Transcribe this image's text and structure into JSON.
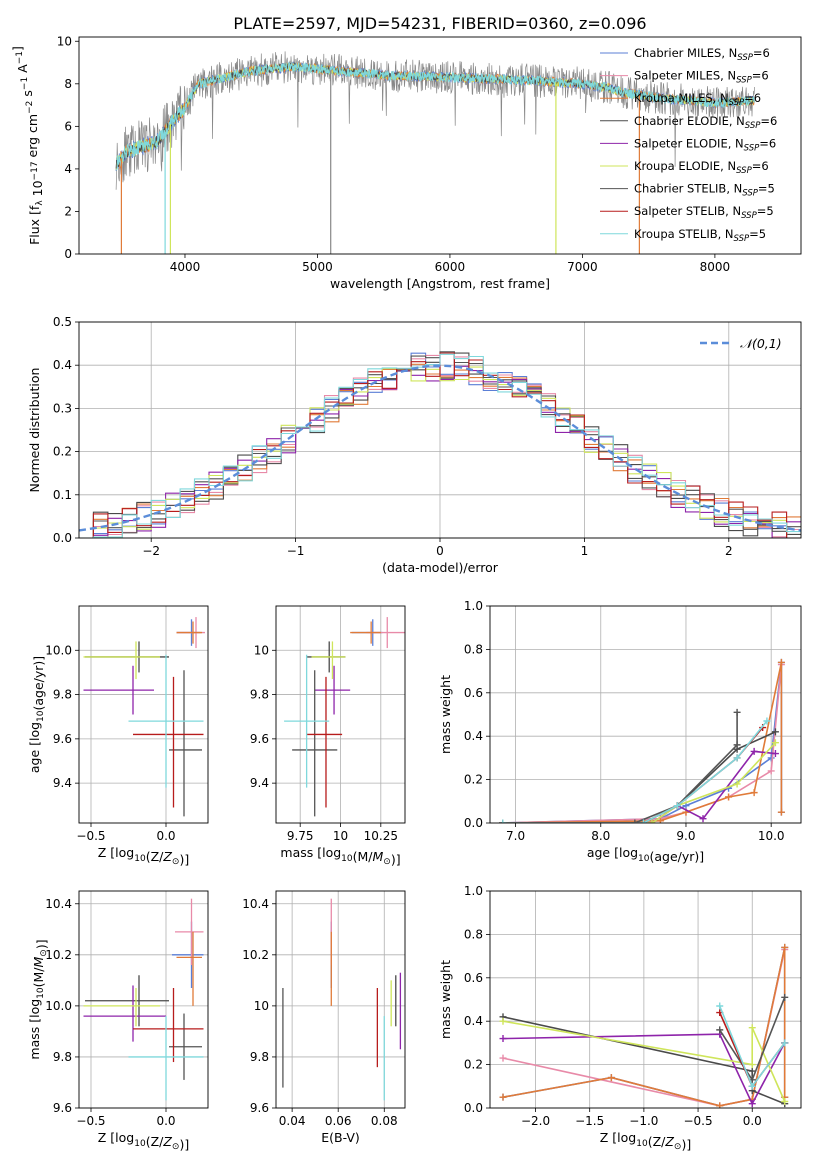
{
  "title": "PLATE=2597, MJD=54231, FIBERID=0360, z=0.096",
  "colors": {
    "chabrier_miles": "#5b7fd6",
    "salpeter_miles": "#e88aa8",
    "kroupa_miles": "#e07b39",
    "chabrier_elodie": "#4a4a4a",
    "salpeter_elodie": "#8e24aa",
    "kroupa_elodie": "#cfe55b",
    "chabrier_stelib": "#555555",
    "salpeter_stelib": "#b71c1c",
    "kroupa_stelib": "#7fd8dc",
    "gaussian": "#5b8dd9"
  },
  "legend_spectrum": [
    {
      "label": "Chabrier MILES, N",
      "sub": "SSP",
      "tail": "=6"
    },
    {
      "label": "Salpeter MILES, N",
      "sub": "SSP",
      "tail": "=6"
    },
    {
      "label": "Kroupa MILES, N",
      "sub": "SSP",
      "tail": "=6"
    },
    {
      "label": "Chabrier ELODIE, N",
      "sub": "SSP",
      "tail": "=6"
    },
    {
      "label": "Salpeter ELODIE, N",
      "sub": "SSP",
      "tail": "=6"
    },
    {
      "label": "Kroupa ELODIE, N",
      "sub": "SSP",
      "tail": "=6"
    },
    {
      "label": "Chabrier STELIB, N",
      "sub": "SSP",
      "tail": "=5"
    },
    {
      "label": "Salpeter STELIB, N",
      "sub": "SSP",
      "tail": "=5"
    },
    {
      "label": "Kroupa STELIB, N",
      "sub": "SSP",
      "tail": "=5"
    }
  ],
  "chart_data": [
    {
      "type": "line",
      "id": "spectrum",
      "xlabel": "wavelength [Angstrom, rest frame]",
      "ylabel": "Flux [f_λ 10^-17 erg cm^-2 s^-1 A^-1]",
      "xlim": [
        3200,
        8650
      ],
      "ylim": [
        0,
        10.2
      ],
      "xticks": [
        4000,
        5000,
        6000,
        7000,
        8000
      ],
      "yticks": [
        0,
        2,
        4,
        6,
        8,
        10
      ],
      "continuum": {
        "x": [
          3500,
          3550,
          3700,
          3800,
          3900,
          4000,
          4100,
          4300,
          4500,
          4800,
          5000,
          5500,
          6000,
          6500,
          7000,
          7200,
          7300,
          7500,
          8000,
          8300
        ],
        "y": [
          4.3,
          4.8,
          5.1,
          5.3,
          6.2,
          6.9,
          8.0,
          8.3,
          8.6,
          8.8,
          8.7,
          8.4,
          8.3,
          8.2,
          8.0,
          7.8,
          7.6,
          7.4,
          7.1,
          7.2
        ]
      }
    },
    {
      "type": "bar",
      "id": "residual-histogram",
      "xlabel": "(data-model)/error",
      "ylabel": "Normed distribution",
      "xlim": [
        -2.5,
        2.5
      ],
      "ylim": [
        0,
        0.5
      ],
      "xticks": [
        -2,
        -1,
        0,
        1,
        2
      ],
      "yticks": [
        0.0,
        0.1,
        0.2,
        0.3,
        0.4,
        0.5
      ],
      "legend": "𝒩(0,1)",
      "bin_width": 0.1
    },
    {
      "type": "scatter",
      "id": "age-vs-z",
      "xlabel": "Z [log10(Z/Z⊙)]",
      "ylabel": "age  [log10(age/yr)]",
      "xlim": [
        -0.58,
        0.28
      ],
      "ylim": [
        9.22,
        10.2
      ],
      "xticks": [
        -0.5,
        0.0
      ],
      "yticks": [
        9.4,
        9.6,
        9.8,
        10.0
      ],
      "points": [
        {
          "model": "chabrier_miles",
          "x": 0.17,
          "y": 10.08,
          "xerr": [
            0.1,
            0.06
          ],
          "yerr": [
            0.06,
            0.06
          ]
        },
        {
          "model": "salpeter_miles",
          "x": 0.2,
          "y": 10.08,
          "xerr": [
            0.13,
            0.06
          ],
          "yerr": [
            0.07,
            0.07
          ]
        },
        {
          "model": "kroupa_miles",
          "x": 0.18,
          "y": 10.08,
          "xerr": [
            0.11,
            0.06
          ],
          "yerr": [
            0.05,
            0.05
          ]
        },
        {
          "model": "chabrier_elodie",
          "x": -0.18,
          "y": 9.97,
          "xerr": [
            0.36,
            0.2
          ],
          "yerr": [
            0.07,
            0.07
          ]
        },
        {
          "model": "salpeter_elodie",
          "x": -0.22,
          "y": 9.82,
          "xerr": [
            0.33,
            0.14
          ],
          "yerr": [
            0.11,
            0.11
          ]
        },
        {
          "model": "kroupa_elodie",
          "x": -0.2,
          "y": 9.97,
          "xerr": [
            0.35,
            0.16
          ],
          "yerr": [
            0.1,
            0.07
          ]
        },
        {
          "model": "chabrier_stelib",
          "x": 0.12,
          "y": 9.55,
          "xerr": [
            0.1,
            0.12
          ],
          "yerr": [
            0.3,
            0.36
          ]
        },
        {
          "model": "salpeter_stelib",
          "x": 0.05,
          "y": 9.62,
          "xerr": [
            0.27,
            0.2
          ],
          "yerr": [
            0.33,
            0.26
          ]
        },
        {
          "model": "kroupa_stelib",
          "x": 0.0,
          "y": 9.68,
          "xerr": [
            0.25,
            0.25
          ],
          "yerr": [
            0.3,
            0.3
          ]
        }
      ]
    },
    {
      "type": "scatter",
      "id": "age-vs-mass",
      "xlabel": "mass [log10(M/M⊙)]",
      "ylabel": "",
      "xlim": [
        9.6,
        10.4
      ],
      "ylim": [
        9.22,
        10.2
      ],
      "xticks": [
        9.75,
        10.0,
        10.25
      ],
      "yticks": [
        9.4,
        9.6,
        9.8,
        10.0
      ],
      "points": [
        {
          "model": "chabrier_miles",
          "x": 10.2,
          "y": 10.08,
          "xerr": [
            0.13,
            0.06
          ],
          "yerr": [
            0.06,
            0.06
          ]
        },
        {
          "model": "salpeter_miles",
          "x": 10.29,
          "y": 10.08,
          "xerr": [
            0.13,
            0.11
          ],
          "yerr": [
            0.07,
            0.07
          ]
        },
        {
          "model": "kroupa_miles",
          "x": 10.19,
          "y": 10.08,
          "xerr": [
            0.13,
            0.06
          ],
          "yerr": [
            0.05,
            0.05
          ]
        },
        {
          "model": "chabrier_elodie",
          "x": 9.93,
          "y": 9.97,
          "xerr": [
            0.14,
            0.1
          ],
          "yerr": [
            0.07,
            0.07
          ]
        },
        {
          "model": "salpeter_elodie",
          "x": 9.96,
          "y": 9.82,
          "xerr": [
            0.12,
            0.1
          ],
          "yerr": [
            0.11,
            0.11
          ]
        },
        {
          "model": "kroupa_elodie",
          "x": 9.95,
          "y": 9.97,
          "xerr": [
            0.13,
            0.08
          ],
          "yerr": [
            0.1,
            0.07
          ]
        },
        {
          "model": "chabrier_stelib",
          "x": 9.84,
          "y": 9.55,
          "xerr": [
            0.14,
            0.14
          ],
          "yerr": [
            0.3,
            0.36
          ]
        },
        {
          "model": "salpeter_stelib",
          "x": 9.91,
          "y": 9.62,
          "xerr": [
            0.12,
            0.1
          ],
          "yerr": [
            0.33,
            0.26
          ]
        },
        {
          "model": "kroupa_stelib",
          "x": 9.79,
          "y": 9.68,
          "xerr": [
            0.14,
            0.14
          ],
          "yerr": [
            0.3,
            0.3
          ]
        }
      ]
    },
    {
      "type": "line",
      "id": "mass-weight-vs-age",
      "xlabel": "age  [log10(age/yr)]",
      "ylabel": "mass weight",
      "xlim": [
        6.7,
        10.35
      ],
      "ylim": [
        0,
        1.0
      ],
      "xticks": [
        7,
        8,
        9,
        10
      ],
      "yticks": [
        0.0,
        0.2,
        0.4,
        0.6,
        0.8,
        1.0
      ],
      "series": [
        {
          "model": "chabrier_miles",
          "x": [
            6.85,
            8.7,
            9.0,
            9.5,
            10.0,
            10.12,
            10.12
          ],
          "y": [
            0.0,
            0.02,
            0.08,
            0.16,
            0.3,
            0.74,
            0.05
          ]
        },
        {
          "model": "salpeter_miles",
          "x": [
            6.85,
            8.7,
            9.0,
            9.5,
            10.0,
            10.12
          ],
          "y": [
            0.0,
            0.02,
            0.05,
            0.12,
            0.24,
            0.73
          ]
        },
        {
          "model": "kroupa_miles",
          "x": [
            6.85,
            8.7,
            9.0,
            9.5,
            9.8,
            10.12,
            10.12
          ],
          "y": [
            0.0,
            0.01,
            0.05,
            0.12,
            0.14,
            0.74,
            0.05
          ]
        },
        {
          "model": "chabrier_elodie",
          "x": [
            6.85,
            8.5,
            8.9,
            9.6,
            10.05
          ],
          "y": [
            0.0,
            0.0,
            0.08,
            0.34,
            0.42
          ]
        },
        {
          "model": "salpeter_elodie",
          "x": [
            6.85,
            8.6,
            8.9,
            9.2,
            9.8,
            10.05
          ],
          "y": [
            0.0,
            0.0,
            0.08,
            0.02,
            0.33,
            0.32
          ]
        },
        {
          "model": "kroupa_elodie",
          "x": [
            6.85,
            8.6,
            8.9,
            9.6,
            10.05
          ],
          "y": [
            0.0,
            0.0,
            0.08,
            0.18,
            0.37
          ]
        },
        {
          "model": "chabrier_stelib",
          "x": [
            6.85,
            8.4,
            8.9,
            9.6,
            9.6
          ],
          "y": [
            0.0,
            0.0,
            0.08,
            0.36,
            0.51
          ]
        },
        {
          "model": "salpeter_stelib",
          "x": [
            6.85,
            8.5,
            8.9,
            9.6,
            9.9
          ],
          "y": [
            0.0,
            0.0,
            0.08,
            0.3,
            0.44
          ]
        },
        {
          "model": "kroupa_stelib",
          "x": [
            6.85,
            8.5,
            8.9,
            9.6,
            9.95
          ],
          "y": [
            0.0,
            0.0,
            0.08,
            0.3,
            0.47
          ]
        }
      ]
    },
    {
      "type": "scatter",
      "id": "mass-vs-z",
      "xlabel": "Z [log10(Z/Z⊙)]",
      "ylabel": "mass [log10(M/M⊙)]",
      "xlim": [
        -0.58,
        0.28
      ],
      "ylim": [
        9.6,
        10.45
      ],
      "xticks": [
        -0.5,
        0.0
      ],
      "yticks": [
        9.6,
        9.8,
        10.0,
        10.2,
        10.4
      ],
      "points": [
        {
          "model": "chabrier_miles",
          "x": 0.17,
          "y": 10.2,
          "xerr": [
            0.13,
            0.08
          ],
          "yerr": [
            0.13,
            0.13
          ]
        },
        {
          "model": "salpeter_miles",
          "x": 0.17,
          "y": 10.29,
          "xerr": [
            0.11,
            0.08
          ],
          "yerr": [
            0.13,
            0.13
          ]
        },
        {
          "model": "kroupa_miles",
          "x": 0.18,
          "y": 10.19,
          "xerr": [
            0.11,
            0.06
          ],
          "yerr": [
            0.19,
            0.1
          ]
        },
        {
          "model": "chabrier_elodie",
          "x": -0.18,
          "y": 10.02,
          "xerr": [
            0.36,
            0.2
          ],
          "yerr": [
            0.1,
            0.1
          ]
        },
        {
          "model": "salpeter_elodie",
          "x": -0.22,
          "y": 9.96,
          "xerr": [
            0.33,
            0.22
          ],
          "yerr": [
            0.1,
            0.12
          ]
        },
        {
          "model": "kroupa_elodie",
          "x": -0.2,
          "y": 10.0,
          "xerr": [
            0.35,
            0.16
          ],
          "yerr": [
            0.08,
            0.07
          ]
        },
        {
          "model": "chabrier_stelib",
          "x": 0.12,
          "y": 9.84,
          "xerr": [
            0.1,
            0.12
          ],
          "yerr": [
            0.13,
            0.13
          ]
        },
        {
          "model": "salpeter_stelib",
          "x": 0.05,
          "y": 9.91,
          "xerr": [
            0.27,
            0.2
          ],
          "yerr": [
            0.13,
            0.16
          ]
        },
        {
          "model": "kroupa_stelib",
          "x": 0.0,
          "y": 9.8,
          "xerr": [
            0.25,
            0.25
          ],
          "yerr": [
            0.17,
            0.16
          ]
        }
      ]
    },
    {
      "type": "scatter",
      "id": "mass-vs-ebv",
      "xlabel": "E(B-V)",
      "ylabel": "",
      "xlim": [
        0.033,
        0.089
      ],
      "ylim": [
        9.6,
        10.45
      ],
      "xticks": [
        0.04,
        0.06,
        0.08
      ],
      "yticks": [
        9.6,
        9.8,
        10.0,
        10.2,
        10.4
      ],
      "points": [
        {
          "model": "chabrier_miles",
          "x": 0.057,
          "y": 10.2,
          "yerr": [
            0.13,
            0.13
          ]
        },
        {
          "model": "salpeter_miles",
          "x": 0.057,
          "y": 10.29,
          "yerr": [
            0.13,
            0.13
          ]
        },
        {
          "model": "kroupa_miles",
          "x": 0.057,
          "y": 10.19,
          "yerr": [
            0.19,
            0.1
          ]
        },
        {
          "model": "chabrier_elodie",
          "x": 0.085,
          "y": 10.02,
          "yerr": [
            0.1,
            0.1
          ]
        },
        {
          "model": "salpeter_elodie",
          "x": 0.087,
          "y": 9.96,
          "yerr": [
            0.13,
            0.17
          ]
        },
        {
          "model": "kroupa_elodie",
          "x": 0.083,
          "y": 10.0,
          "yerr": [
            0.08,
            0.1
          ]
        },
        {
          "model": "chabrier_stelib",
          "x": 0.036,
          "y": 9.84,
          "yerr": [
            0.16,
            0.23
          ]
        },
        {
          "model": "salpeter_stelib",
          "x": 0.077,
          "y": 9.91,
          "yerr": [
            0.15,
            0.16
          ]
        },
        {
          "model": "kroupa_stelib",
          "x": 0.08,
          "y": 9.8,
          "yerr": [
            0.17,
            0.16
          ]
        }
      ]
    },
    {
      "type": "line",
      "id": "mass-weight-vs-z",
      "xlabel": "Z [log10(Z/Z⊙)]",
      "ylabel": "mass weight",
      "xlim": [
        -2.42,
        0.45
      ],
      "ylim": [
        0,
        1.0
      ],
      "xticks": [
        -2.0,
        -1.5,
        -1.0,
        -0.5,
        0.0
      ],
      "yticks": [
        0.0,
        0.2,
        0.4,
        0.6,
        0.8,
        1.0
      ],
      "series": [
        {
          "model": "chabrier_miles",
          "x": [
            -2.3,
            -1.3,
            -0.3,
            0.0,
            0.3,
            0.3
          ],
          "y": [
            0.05,
            0.14,
            0.01,
            0.04,
            0.74,
            0.05
          ]
        },
        {
          "model": "salpeter_miles",
          "x": [
            -2.3,
            -0.3,
            0.0,
            0.3
          ],
          "y": [
            0.23,
            0.01,
            0.04,
            0.73
          ]
        },
        {
          "model": "kroupa_miles",
          "x": [
            -2.3,
            -1.3,
            -0.3,
            0.0,
            0.3,
            0.3
          ],
          "y": [
            0.05,
            0.14,
            0.01,
            0.04,
            0.74,
            0.05
          ]
        },
        {
          "model": "chabrier_elodie",
          "x": [
            -2.3,
            0.0,
            0.0,
            0.3
          ],
          "y": [
            0.42,
            0.17,
            0.08,
            0.02
          ]
        },
        {
          "model": "salpeter_elodie",
          "x": [
            -2.3,
            -0.3,
            0.0,
            0.3
          ],
          "y": [
            0.32,
            0.34,
            0.02,
            0.3
          ]
        },
        {
          "model": "kroupa_elodie",
          "x": [
            -2.3,
            0.0,
            0.0,
            0.3
          ],
          "y": [
            0.4,
            0.2,
            0.37,
            0.03
          ]
        },
        {
          "model": "chabrier_stelib",
          "x": [
            -0.3,
            0.0,
            0.3
          ],
          "y": [
            0.36,
            0.13,
            0.51
          ]
        },
        {
          "model": "salpeter_stelib",
          "x": [
            -0.3,
            0.0,
            0.3
          ],
          "y": [
            0.44,
            0.1,
            0.3
          ]
        },
        {
          "model": "kroupa_stelib",
          "x": [
            -0.3,
            0.0,
            0.3
          ],
          "y": [
            0.47,
            0.1,
            0.3
          ]
        }
      ]
    }
  ]
}
